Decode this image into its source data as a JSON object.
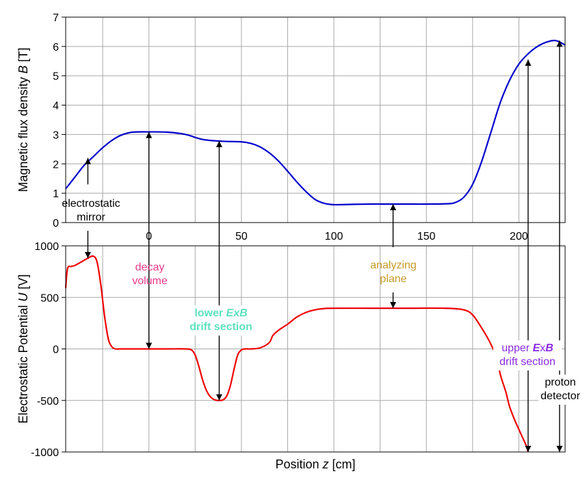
{
  "chart_data": [
    {
      "type": "line",
      "id": "top",
      "title": "",
      "ylabel": "Magnetic flux density B [T]",
      "ylabel_parts": [
        {
          "t": "Magnetic flux density ",
          "i": false
        },
        {
          "t": "B",
          "i": true
        },
        {
          "t": " [T]",
          "i": false
        }
      ],
      "xlabel": "",
      "xlim": [
        -45,
        225
      ],
      "ylim": [
        0,
        7
      ],
      "xticks": [
        0,
        50,
        100,
        150,
        200
      ],
      "yticks": [
        0,
        1,
        2,
        3,
        4,
        5,
        6,
        7
      ],
      "grid": true,
      "series": [
        {
          "color": "#0000cc",
          "x": [
            -45,
            -40,
            -35,
            -30,
            -25,
            -20,
            -15,
            -10,
            -5,
            0,
            10,
            20,
            25,
            30,
            40,
            50,
            55,
            60,
            65,
            70,
            75,
            80,
            85,
            90,
            95,
            100,
            110,
            120,
            130,
            140,
            150,
            160,
            165,
            170,
            175,
            180,
            185,
            190,
            195,
            200,
            205,
            210,
            215,
            220,
            225
          ],
          "y": [
            1.15,
            1.55,
            1.95,
            2.25,
            2.55,
            2.8,
            2.98,
            3.07,
            3.09,
            3.09,
            3.08,
            3.0,
            2.9,
            2.82,
            2.77,
            2.75,
            2.7,
            2.58,
            2.38,
            2.1,
            1.75,
            1.38,
            1.05,
            0.78,
            0.65,
            0.61,
            0.62,
            0.63,
            0.63,
            0.63,
            0.63,
            0.64,
            0.67,
            0.85,
            1.3,
            2.1,
            3.1,
            4.1,
            4.85,
            5.4,
            5.75,
            6.0,
            6.15,
            6.2,
            6.05
          ]
        }
      ]
    },
    {
      "type": "line",
      "id": "bottom",
      "title": "",
      "ylabel": "Electrostatic Potential U [V]",
      "ylabel_parts": [
        {
          "t": "Electrostatic Potential ",
          "i": false
        },
        {
          "t": "U",
          "i": true
        },
        {
          "t": " [V]",
          "i": false
        }
      ],
      "xlabel": "Position z [cm]",
      "xlabel_parts": [
        {
          "t": "Position ",
          "i": false
        },
        {
          "t": "z",
          "i": true
        },
        {
          "t": " [cm]",
          "i": false
        }
      ],
      "xlim": [
        -45,
        225
      ],
      "ylim": [
        -1000,
        1000
      ],
      "xticks": [
        0,
        50,
        100,
        150,
        200
      ],
      "yticks": [
        -1000,
        -500,
        0,
        500,
        1000
      ],
      "grid": true,
      "series": [
        {
          "color": "#ee0000",
          "x": [
            -45,
            -44,
            -42,
            -40,
            -36,
            -33,
            -30,
            -28,
            -26,
            -24,
            -22,
            -20,
            -18,
            -16,
            -14,
            -12,
            -10,
            -5,
            0,
            10,
            20,
            23,
            25,
            27,
            29,
            31,
            33,
            35,
            37,
            38,
            40,
            42,
            44,
            46,
            48,
            50,
            52,
            55,
            60,
            65,
            67,
            70,
            75,
            80,
            85,
            90,
            95,
            100,
            120,
            140,
            160,
            170,
            175,
            180,
            183,
            185,
            188,
            190,
            193,
            195,
            198,
            200,
            202,
            204,
            205
          ],
          "y": [
            590,
            780,
            800,
            810,
            850,
            880,
            900,
            840,
            620,
            320,
            100,
            20,
            0,
            0,
            0,
            0,
            0,
            0,
            0,
            0,
            0,
            -10,
            -60,
            -170,
            -300,
            -400,
            -460,
            -490,
            -500,
            -500,
            -495,
            -460,
            -360,
            -200,
            -60,
            -10,
            0,
            0,
            10,
            60,
            130,
            180,
            240,
            310,
            355,
            380,
            392,
            395,
            395,
            395,
            395,
            380,
            330,
            200,
            110,
            40,
            -80,
            -250,
            -420,
            -560,
            -700,
            -780,
            -860,
            -940,
            -1000
          ]
        }
      ]
    }
  ],
  "annotations": [
    {
      "name": "electrostatic-mirror",
      "lines": [
        [
          {
            "t": "electrostatic",
            "i": false
          }
        ],
        [
          {
            "t": "mirror",
            "i": false
          }
        ]
      ],
      "color": "#000000",
      "bold": false
    },
    {
      "name": "decay-volume",
      "lines": [
        [
          {
            "t": "decay",
            "i": false
          }
        ],
        [
          {
            "t": "volume",
            "i": false
          }
        ]
      ],
      "color": "#e8388a",
      "bold": false
    },
    {
      "name": "lower-exb",
      "lines": [
        [
          {
            "t": "lower ",
            "i": false
          },
          {
            "t": "ExB",
            "i": true
          }
        ],
        [
          {
            "t": "drift section",
            "i": false
          }
        ]
      ],
      "color": "#5fe0c0",
      "bold": true
    },
    {
      "name": "analyzing-plane",
      "lines": [
        [
          {
            "t": "analyzing",
            "i": false
          }
        ],
        [
          {
            "t": "plane",
            "i": false
          }
        ]
      ],
      "color": "#c79a2a",
      "bold": false
    },
    {
      "name": "upper-exb",
      "lines": [
        [
          {
            "t": "upper ",
            "i": false
          },
          {
            "t": "E",
            "i": true,
            "b": true
          },
          {
            "t": "x",
            "i": false,
            "b": false
          },
          {
            "t": "B",
            "i": true,
            "b": true
          }
        ],
        [
          {
            "t": "drift section",
            "i": false
          }
        ]
      ],
      "color": "#8a2be2",
      "bold": false
    },
    {
      "name": "proton-detector",
      "lines": [
        [
          {
            "t": "proton",
            "i": false
          }
        ],
        [
          {
            "t": "detector",
            "i": false
          }
        ]
      ],
      "color": "#000000",
      "bold": false
    }
  ]
}
